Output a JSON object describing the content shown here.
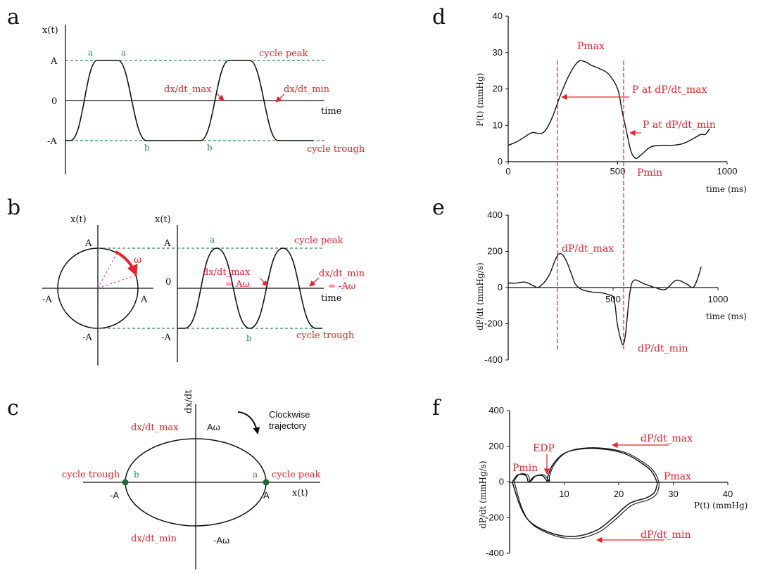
{
  "colors": {
    "curve": "#111111",
    "annot": "#e8202a",
    "green": "#1e9a3a",
    "dash_green": "#2f8a45",
    "dash_pink": "#e0308f"
  },
  "panel_labels": {
    "a": "a",
    "b": "b",
    "c": "c",
    "d": "d",
    "e": "e",
    "f": "f"
  },
  "panel_a": {
    "y_label": "x(t)",
    "x_label": "time",
    "tick_A": "A",
    "tick_0": "0",
    "tick_negA": "-A",
    "peak_label": "cycle peak",
    "trough_label": "cycle trough",
    "dxmax": "dx/dt_max",
    "dxmin": "dx/dt_min",
    "pt_a1": "a",
    "pt_a2": "a",
    "pt_b1": "b",
    "pt_b2": "b"
  },
  "panel_b": {
    "circle_y_label": "x(t)",
    "circle_top": "A",
    "circle_left": "-A",
    "circle_right": "A",
    "circle_bottom": "-A",
    "omega": "ω",
    "y_label": "x(t)",
    "x_label": "time",
    "tick_A": "A",
    "tick_0": "0",
    "tick_negA": "-A",
    "peak_label": "cycle peak",
    "trough_label": "cycle trough",
    "dxmax": "dx/dt_max",
    "dxmax_eq": "= Aω",
    "dxmin": "dx/dt_min",
    "dxmin_eq": "= -Aω",
    "pt_a": "a",
    "pt_b": "b"
  },
  "panel_c": {
    "y_label": "dx/dt",
    "x_label": "x(t)",
    "dxmax": "dx/dt_max",
    "dxmin": "dx/dt_min",
    "a_omega": "Aω",
    "neg_a_omega": "-Aω",
    "neg_A": "-A",
    "A": "A",
    "trough": "cycle trough",
    "peak": "cycle peak",
    "pt_b": "b",
    "pt_a": "a",
    "clockwise": "Clockwise\ntrajectory"
  },
  "panel_d": {
    "y_label": "P(t) (mmHg)",
    "x_label": "time (ms)",
    "pmax": "Pmax",
    "pmin": "Pmin",
    "p_at_max": "P at dP/dt_max",
    "p_at_min": "P at dP/dt_min"
  },
  "panel_e": {
    "y_label": "dP/dt (mmHg/s)",
    "x_label": "time (ms)",
    "dpmax": "dP/dt_max",
    "dpmin": "dP/dt_min"
  },
  "panel_f": {
    "y_label": "dP/dt (mmHg/s)",
    "x_label": "P(t) (mmHg)",
    "pmin": "Pmin",
    "edp": "EDP",
    "pmax": "Pmax",
    "dpmax": "dP/dt_max",
    "dpmin": "dP/dt_min"
  },
  "chart_data": [
    {
      "panel": "d",
      "type": "line",
      "xlabel": "time (ms)",
      "ylabel": "P(t) (mmHg)",
      "xlim": [
        0,
        1000
      ],
      "ylim": [
        0,
        40
      ],
      "x_ticks": [
        0,
        500,
        1000
      ],
      "y_ticks": [
        0,
        10,
        20,
        30,
        40
      ],
      "series": [
        {
          "x": [
            0,
            40,
            80,
            110,
            160,
            200,
            240,
            280,
            320,
            350,
            380,
            420,
            460,
            500,
            520,
            540,
            560,
            580,
            600,
            650,
            700,
            750,
            800,
            850,
            880,
            900,
            920
          ],
          "values": [
            4.5,
            5.5,
            7,
            8,
            8,
            12,
            18.5,
            24,
            27.5,
            27.5,
            26.5,
            25.5,
            24,
            20,
            14,
            8.5,
            3,
            1,
            1.5,
            4,
            4.5,
            4.5,
            5,
            6.5,
            7.5,
            7.5,
            9
          ]
        }
      ]
    },
    {
      "panel": "e",
      "type": "line",
      "xlabel": "time (ms)",
      "ylabel": "dP/dt (mmHg/s)",
      "xlim": [
        0,
        1000
      ],
      "ylim": [
        -400,
        400
      ],
      "x_ticks": [
        500,
        1000
      ],
      "y_ticks": [
        -400,
        -200,
        0,
        200,
        400
      ],
      "series": [
        {
          "x": [
            0,
            40,
            80,
            120,
            140,
            160,
            180,
            200,
            220,
            240,
            260,
            280,
            300,
            320,
            350,
            400,
            450,
            480,
            500,
            510,
            520,
            540,
            550,
            560,
            580,
            600,
            650,
            700,
            750,
            800,
            850,
            880,
            900,
            920
          ],
          "values": [
            25,
            25,
            30,
            10,
            0,
            15,
            40,
            80,
            140,
            185,
            180,
            140,
            80,
            20,
            -10,
            -25,
            -30,
            -40,
            -50,
            -100,
            -200,
            -300,
            -310,
            -250,
            -30,
            40,
            20,
            0,
            -10,
            40,
            20,
            0,
            40,
            115
          ]
        }
      ]
    },
    {
      "panel": "f",
      "type": "line",
      "xlabel": "P(t) (mmHg)",
      "ylabel": "dP/dt (mmHg/s)",
      "xlim": [
        0,
        40
      ],
      "ylim": [
        -400,
        400
      ],
      "x_ticks": [
        10,
        20,
        30,
        40
      ],
      "y_ticks": [
        -400,
        -200,
        0,
        200,
        400
      ],
      "series": [
        {
          "x": [
            0.5,
            1.5,
            3,
            3.5,
            4.5,
            6,
            7,
            7,
            8,
            10,
            13,
            17,
            21,
            24,
            26,
            27,
            27,
            26.5,
            25,
            22,
            19,
            16,
            12,
            8,
            4,
            2,
            0.5
          ],
          "values": [
            0,
            40,
            35,
            0,
            30,
            35,
            0,
            30,
            100,
            160,
            185,
            185,
            160,
            110,
            60,
            0,
            -20,
            -60,
            -90,
            -120,
            -200,
            -270,
            -305,
            -290,
            -230,
            -140,
            0
          ]
        }
      ]
    }
  ]
}
